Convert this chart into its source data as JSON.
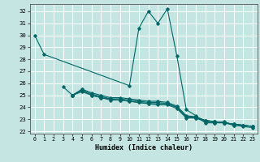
{
  "xlabel": "Humidex (Indice chaleur)",
  "xlim": [
    -0.5,
    23.5
  ],
  "ylim": [
    21.8,
    32.6
  ],
  "yticks": [
    22,
    23,
    24,
    25,
    26,
    27,
    28,
    29,
    30,
    31,
    32
  ],
  "xticks": [
    0,
    1,
    2,
    3,
    4,
    5,
    6,
    7,
    8,
    9,
    10,
    11,
    12,
    13,
    14,
    15,
    16,
    17,
    18,
    19,
    20,
    21,
    22,
    23
  ],
  "bg_color": "#c5e5e2",
  "grid_color": "#ffffff",
  "line_color": "#006666",
  "series": [
    [
      30.0,
      28.4,
      null,
      null,
      null,
      null,
      null,
      null,
      null,
      null,
      25.8,
      30.6,
      32.0,
      31.0,
      32.2,
      28.3,
      23.8,
      23.3,
      22.7,
      22.7,
      22.8,
      22.5,
      null,
      null
    ],
    [
      null,
      null,
      null,
      25.7,
      25.0,
      25.5,
      25.2,
      25.0,
      24.8,
      24.8,
      24.7,
      24.6,
      24.5,
      24.5,
      24.4,
      24.1,
      23.3,
      23.2,
      22.9,
      22.8,
      22.7,
      22.6,
      22.5,
      22.4
    ],
    [
      null,
      null,
      null,
      null,
      25.0,
      25.5,
      25.1,
      24.9,
      24.7,
      24.7,
      24.6,
      24.5,
      24.4,
      24.4,
      24.3,
      24.0,
      23.2,
      23.2,
      22.9,
      22.8,
      22.7,
      22.6,
      22.5,
      22.4
    ],
    [
      null,
      null,
      null,
      null,
      25.0,
      25.4,
      25.0,
      24.8,
      24.7,
      24.6,
      24.5,
      24.4,
      24.3,
      24.3,
      24.3,
      24.0,
      23.2,
      23.1,
      22.9,
      22.8,
      22.7,
      22.6,
      22.5,
      22.4
    ],
    [
      null,
      null,
      null,
      null,
      25.0,
      25.3,
      25.0,
      24.8,
      24.6,
      24.6,
      24.5,
      24.4,
      24.3,
      24.2,
      24.2,
      23.9,
      23.1,
      23.1,
      22.8,
      22.7,
      22.7,
      22.5,
      22.4,
      22.3
    ]
  ]
}
